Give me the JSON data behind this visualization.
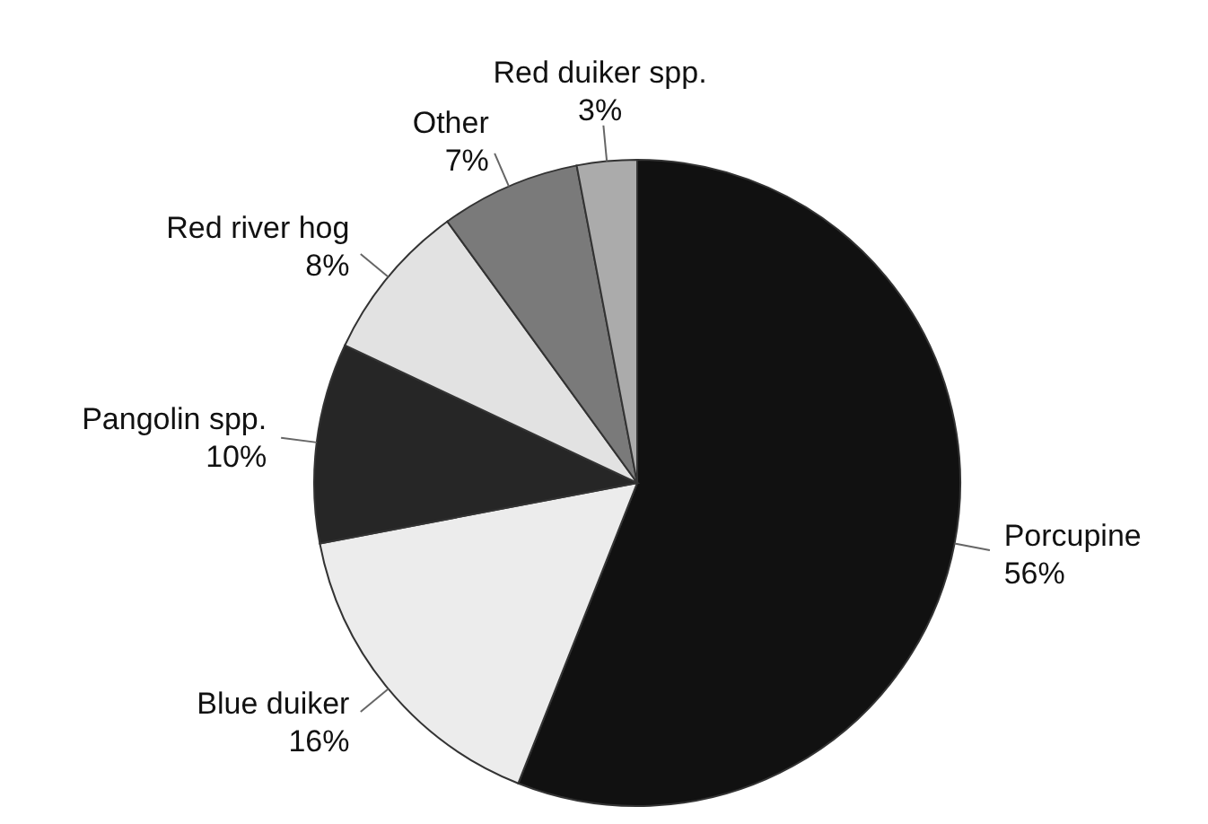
{
  "chart_data": {
    "type": "pie",
    "categories": [
      "Porcupine",
      "Blue duiker",
      "Pangolin spp.",
      "Red river hog",
      "Other",
      "Red duiker spp."
    ],
    "values": [
      56,
      16,
      10,
      8,
      7,
      3
    ],
    "value_labels": [
      "56%",
      "16%",
      "10%",
      "8%",
      "7%",
      "3%"
    ],
    "colors": [
      "#111111",
      "#ececec",
      "#262626",
      "#e2e2e2",
      "#7a7a7a",
      "#ababab"
    ],
    "legend": false
  }
}
